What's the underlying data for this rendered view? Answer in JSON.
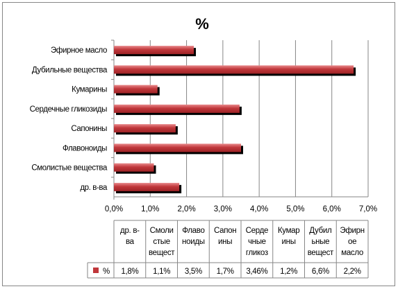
{
  "chart_data": {
    "type": "bar",
    "orientation": "horizontal",
    "title": "%",
    "categories": [
      "Эфирное масло",
      "Дубильные вещества",
      "Кумарины",
      "Сердечные гликозиды",
      "Сапонины",
      "Флавоноиды",
      "Смолистые вещества",
      "др. в-ва"
    ],
    "series": [
      {
        "name": "%",
        "values": [
          2.2,
          6.6,
          1.2,
          3.46,
          1.7,
          3.5,
          1.1,
          1.8
        ],
        "color": "#c0373b"
      }
    ],
    "xlim": [
      0,
      7
    ],
    "xticks": [
      "0,0%",
      "1,0%",
      "2,0%",
      "3,0%",
      "4,0%",
      "5,0%",
      "6,0%",
      "7,0%"
    ],
    "grid": "vertical",
    "legend": "in-data-table",
    "data_table": {
      "headers": [
        [
          "др. в-",
          "ва"
        ],
        [
          "Смоли",
          "стые",
          "вещест"
        ],
        [
          "Флаво",
          "ноиды"
        ],
        [
          "Сапон",
          "ины"
        ],
        [
          "Серде",
          "чные",
          "гликоз"
        ],
        [
          "Кумар",
          "ины"
        ],
        [
          "Дубил",
          "ьные",
          "вещест"
        ],
        [
          "Эфирн",
          "ое",
          "масло"
        ]
      ],
      "row_label": "%",
      "values": [
        "1,8%",
        "1,1%",
        "3,5%",
        "1,7%",
        "3,46%",
        "1,2%",
        "6,6%",
        "2,2%"
      ]
    }
  }
}
